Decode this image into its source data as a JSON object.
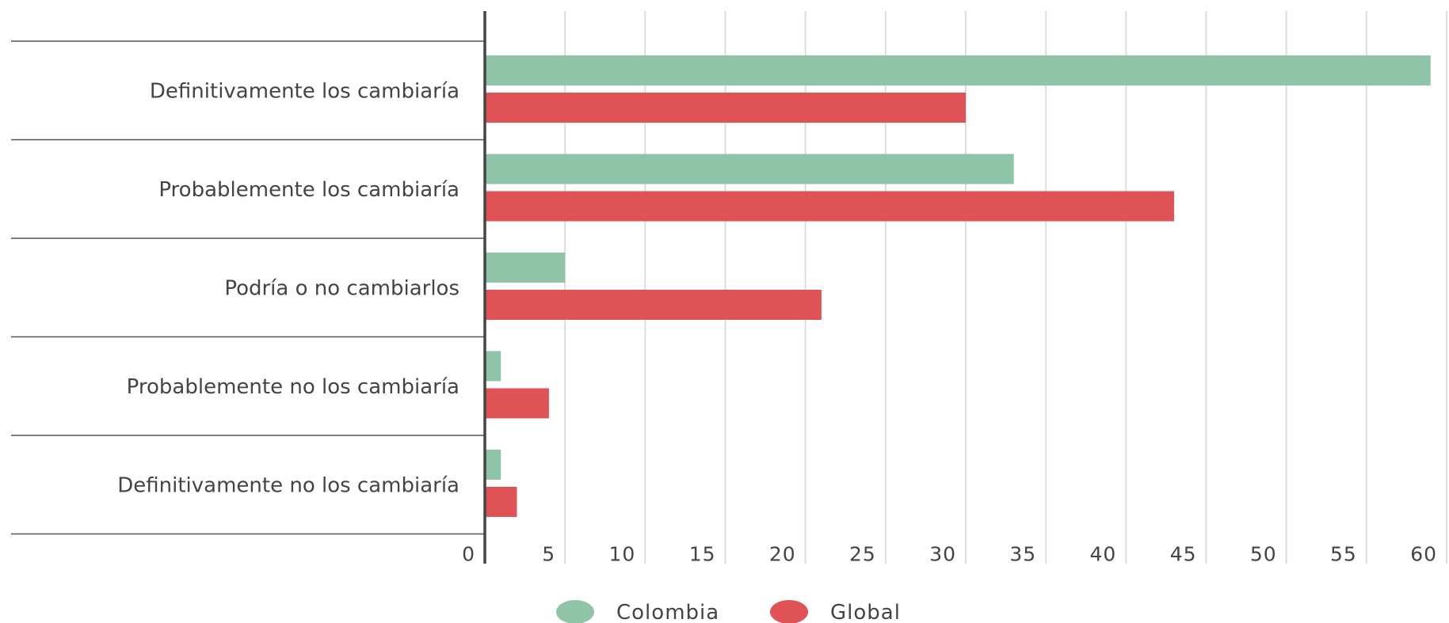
{
  "chart_data": {
    "type": "bar",
    "orientation": "horizontal",
    "categories": [
      "Definitivamente los cambiaría",
      "Probablemente los cambiaría",
      "Podría o no cambiarlos",
      "Probablemente no los cambiaría",
      "Definitivamente no los cambiaría"
    ],
    "series": [
      {
        "name": "Colombia",
        "color": "#8fc4a8",
        "values": [
          59,
          33,
          5,
          1,
          1
        ]
      },
      {
        "name": "Global",
        "color": "#df5357",
        "values": [
          30,
          43,
          21,
          4,
          2
        ]
      }
    ],
    "xlim": [
      0,
      60
    ],
    "xticks": [
      "0",
      "5",
      "10",
      "15",
      "20",
      "25",
      "30",
      "35",
      "40",
      "45",
      "50",
      "55",
      "60"
    ],
    "grid": true,
    "legend_position": "bottom"
  }
}
